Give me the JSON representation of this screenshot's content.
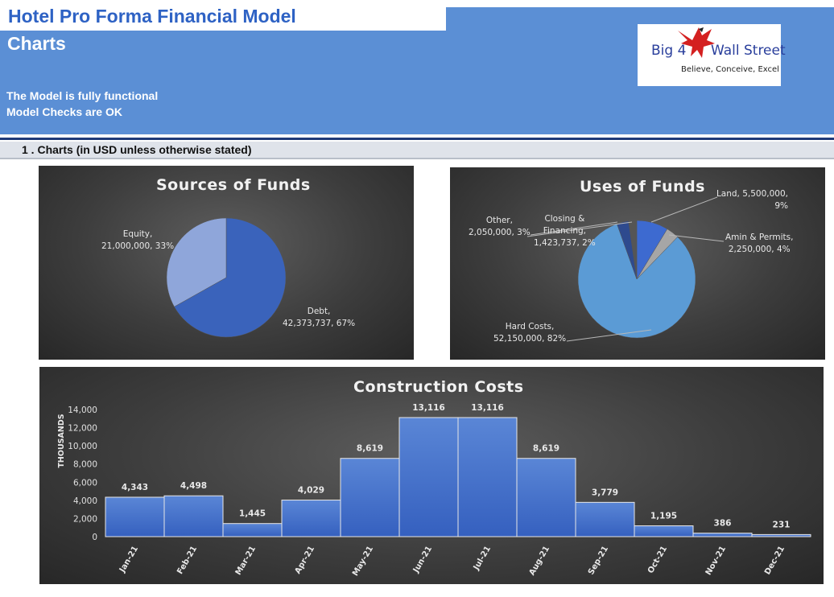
{
  "header": {
    "title": "Hotel Pro Forma Financial Model",
    "subtitle": "Charts",
    "status_lines": [
      "The Model is fully functional",
      "Model Checks are OK"
    ],
    "logo": {
      "left_text": "Big 4",
      "right_text": "Wall Street",
      "tagline": "Believe, Conceive, Excel",
      "icon": "eagle-icon"
    }
  },
  "section": {
    "label": "1 . Charts (in USD unless otherwise stated)"
  },
  "colors": {
    "header_blue": "#5b8fd5",
    "title_blue": "#2e62c4",
    "bar_blue": "#4472c4"
  },
  "chart_data": [
    {
      "type": "pie",
      "title": "Sources of Funds",
      "categories": [
        "Equity",
        "Debt"
      ],
      "values": [
        21000000,
        42373737
      ],
      "labels": [
        {
          "name": "Equity,",
          "detail": "21,000,000, 33%"
        },
        {
          "name": "Debt,",
          "detail": "42,373,737, 67%"
        }
      ],
      "colors": [
        "#8fa6da",
        "#3a63bb"
      ]
    },
    {
      "type": "pie",
      "title": "Uses of Funds",
      "categories": [
        "Land",
        "Amin & Permits",
        "Hard Costs",
        "Other",
        "Closing & Financing"
      ],
      "values": [
        5500000,
        2250000,
        52150000,
        2050000,
        1423737
      ],
      "labels": [
        {
          "name": "Land, 5,500,000,",
          "detail": "9%"
        },
        {
          "name": "Amin & Permits,",
          "detail": "2,250,000, 4%"
        },
        {
          "name": "Hard Costs,",
          "detail": "52,150,000, 82%"
        },
        {
          "name": "Other,",
          "detail": "2,050,000, 3%"
        },
        {
          "name": "Closing &",
          "detail": "Financing,"
        },
        {
          "name": "",
          "detail": "1,423,737, 2%"
        }
      ],
      "colors": [
        "#3d6ad0",
        "#a6a6a6",
        "#5b9bd5",
        "#2e4a8e",
        "#555555"
      ]
    },
    {
      "type": "bar",
      "title": "Construction Costs",
      "ylabel": "THOUSANDS",
      "categories": [
        "Jan-21",
        "Feb-21",
        "Mar-21",
        "Apr-21",
        "May-21",
        "Jun-21",
        "Jul-21",
        "Aug-21",
        "Sep-21",
        "Oct-21",
        "Nov-21",
        "Dec-21"
      ],
      "values": [
        4343,
        4498,
        1445,
        4029,
        8619,
        13116,
        13116,
        8619,
        3779,
        1195,
        386,
        231
      ],
      "value_labels": [
        "4,343",
        "4,498",
        "1,445",
        "4,029",
        "8,619",
        "13,116",
        "13,116",
        "8,619",
        "3,779",
        "1,195",
        "386",
        "231"
      ],
      "yticks": [
        "0",
        "2,000",
        "4,000",
        "6,000",
        "8,000",
        "10,000",
        "12,000",
        "14,000"
      ],
      "ylim": [
        0,
        14000
      ],
      "grid": false
    }
  ]
}
